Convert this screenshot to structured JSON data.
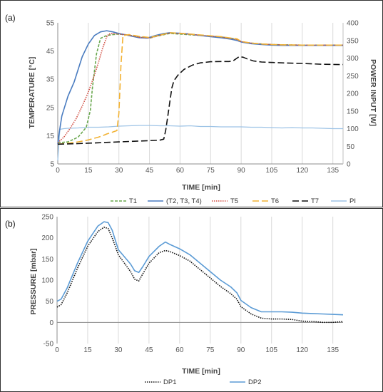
{
  "chart_data": [
    {
      "panel_label": "(a)",
      "type": "line",
      "xlabel": "TIME [min]",
      "ylabel": "TEMPERATURE [°C]",
      "y2label": "POWER INPUT [W]",
      "xlim": [
        0,
        140
      ],
      "ylim": [
        5,
        55
      ],
      "y2lim": [
        0,
        400
      ],
      "xticks": [
        "0",
        "15",
        "30",
        "45",
        "60",
        "75",
        "90",
        "105",
        "120",
        "135"
      ],
      "yticks": [
        "5",
        "15",
        "25",
        "35",
        "45",
        "55"
      ],
      "y2ticks": [
        "0",
        "50",
        "100",
        "150",
        "200",
        "250",
        "300",
        "350",
        "400"
      ],
      "grid": "vertical",
      "legend_position": "bottom",
      "series": [
        {
          "name": "T1",
          "axis": "left",
          "color": "#6aa84f",
          "dash": "dash",
          "x": [
            0,
            5,
            10,
            14,
            16,
            17,
            19,
            21,
            24,
            27,
            30,
            33,
            36,
            40,
            45,
            50,
            55,
            60,
            70,
            80,
            88,
            90,
            95,
            100,
            105,
            110,
            120,
            130,
            140
          ],
          "y": [
            12.5,
            12.8,
            14.5,
            18,
            24,
            32,
            44,
            49.5,
            50.5,
            50.8,
            51,
            50.8,
            50.5,
            50,
            49.6,
            50.5,
            51.2,
            51,
            50.5,
            50,
            49.2,
            48.3,
            47.8,
            47.5,
            47.3,
            47.2,
            47.1,
            47.1,
            47.1
          ]
        },
        {
          "name": "(T2, T3, T4)",
          "axis": "left",
          "color": "#4a7cc0",
          "dash": "solid",
          "x": [
            0,
            0.5,
            2,
            5,
            8,
            12,
            15,
            18,
            21,
            24,
            27,
            30,
            33,
            36,
            40,
            44,
            48,
            52,
            55,
            60,
            65,
            70,
            75,
            80,
            85,
            88,
            90,
            95,
            100,
            105,
            110,
            120,
            130,
            140
          ],
          "y": [
            12,
            15,
            22,
            29,
            34,
            43,
            47.5,
            50.5,
            51.8,
            52.2,
            51.8,
            51.2,
            50.8,
            50.3,
            49.7,
            49.6,
            50.5,
            51.2,
            51.5,
            51.3,
            51,
            50.5,
            50.1,
            49.7,
            49.2,
            48.7,
            48.2,
            47.6,
            47.3,
            47.1,
            47,
            47,
            47,
            47
          ]
        },
        {
          "name": "T5",
          "axis": "left",
          "color": "#d04a3e",
          "dash": "dot",
          "x": [
            0,
            3,
            6,
            9,
            12,
            15,
            18,
            20,
            22,
            24,
            25,
            27,
            30,
            35,
            40,
            45,
            50,
            55,
            60,
            70,
            80,
            88,
            90,
            95,
            100,
            105,
            110,
            120,
            130,
            140
          ],
          "y": [
            12.5,
            14.5,
            17.5,
            21,
            25.5,
            30.5,
            36.5,
            41,
            46,
            50,
            51,
            51.2,
            51,
            50.6,
            49.9,
            49.6,
            50.6,
            51.4,
            51.2,
            50.6,
            50,
            49.1,
            48.3,
            47.8,
            47.5,
            47.3,
            47.2,
            47.1,
            47.1,
            47.1
          ]
        },
        {
          "name": "T6",
          "axis": "left",
          "color": "#f2b233",
          "dash": "longdash",
          "x": [
            0,
            5,
            10,
            15,
            20,
            22,
            24,
            27,
            29,
            30,
            31,
            32,
            35,
            40,
            45,
            50,
            55,
            60,
            70,
            80,
            88,
            90,
            95,
            100,
            105,
            110,
            120,
            130,
            140
          ],
          "y": [
            12,
            12.3,
            12.8,
            13.5,
            14.5,
            15,
            15.6,
            16.3,
            16.8,
            23,
            40,
            50.5,
            50.8,
            50.2,
            49.8,
            50.6,
            51.5,
            51.3,
            50.7,
            50.1,
            49.3,
            48.4,
            47.8,
            47.5,
            47.3,
            47.2,
            47.1,
            47.1,
            47.1
          ]
        },
        {
          "name": "T7",
          "axis": "left",
          "color": "#111111",
          "dash": "longdash",
          "x": [
            0,
            10,
            20,
            30,
            40,
            50,
            52,
            53,
            54,
            55,
            56,
            57,
            59,
            62,
            66,
            70,
            75,
            80,
            84,
            86,
            88,
            89,
            91,
            93,
            96,
            100,
            110,
            120,
            130,
            140
          ],
          "y": [
            12,
            12.2,
            12.5,
            12.8,
            13.1,
            13.4,
            13.8,
            17,
            22,
            27,
            32,
            34.5,
            36.5,
            38.5,
            40,
            40.8,
            41.2,
            41.3,
            41.3,
            41.5,
            42.5,
            43,
            42.8,
            42.2,
            41.5,
            41.1,
            40.8,
            40.6,
            40.3,
            40.2
          ]
        },
        {
          "name": "PI",
          "axis": "right",
          "color": "#9dc3e6",
          "dash": "solid",
          "x": [
            0,
            1,
            3,
            5,
            10,
            15,
            20,
            25,
            30,
            35,
            40,
            45,
            50,
            55,
            60,
            65,
            70,
            75,
            80,
            85,
            90,
            95,
            100,
            105,
            110,
            115,
            120,
            125,
            130,
            135,
            140
          ],
          "y": [
            10,
            98,
            100,
            101,
            102,
            104,
            104,
            105,
            107,
            108,
            109,
            109,
            108,
            108,
            107,
            108,
            106,
            106,
            105,
            105,
            105,
            104,
            104,
            103,
            102,
            103,
            102,
            102,
            101,
            100,
            100
          ]
        }
      ]
    },
    {
      "panel_label": "(b)",
      "type": "line",
      "xlabel": "TIME [min]",
      "ylabel": "PRESSURE [mbar]",
      "xlim": [
        0,
        140
      ],
      "ylim": [
        -50,
        250
      ],
      "xticks": [
        "0",
        "15",
        "30",
        "45",
        "60",
        "75",
        "90",
        "105",
        "120",
        "135"
      ],
      "yticks": [
        "-50",
        "0",
        "50",
        "100",
        "150",
        "200",
        "250"
      ],
      "grid": "vertical",
      "legend_position": "bottom",
      "series": [
        {
          "name": "DP1",
          "color": "#111111",
          "dash": "dot",
          "x": [
            0,
            2,
            5,
            10,
            15,
            20,
            23,
            25,
            27,
            30,
            33,
            36,
            38,
            40,
            42,
            45,
            50,
            53,
            55,
            60,
            65,
            70,
            75,
            80,
            85,
            88,
            90,
            95,
            100,
            105,
            110,
            115,
            120,
            125,
            130,
            135,
            140
          ],
          "y": [
            36,
            42,
            70,
            128,
            180,
            215,
            225,
            222,
            200,
            160,
            140,
            120,
            102,
            98,
            115,
            140,
            165,
            170,
            168,
            158,
            145,
            125,
            105,
            85,
            68,
            55,
            37,
            20,
            10,
            8,
            8,
            7,
            3,
            2,
            0,
            0,
            2
          ]
        },
        {
          "name": "DP2",
          "color": "#5b9bd5",
          "dash": "solid",
          "x": [
            0,
            2,
            5,
            10,
            15,
            20,
            23,
            25,
            27,
            30,
            33,
            36,
            38,
            40,
            42,
            45,
            50,
            53,
            55,
            60,
            65,
            70,
            75,
            80,
            85,
            88,
            90,
            95,
            100,
            105,
            110,
            115,
            120,
            125,
            130,
            135,
            140
          ],
          "y": [
            50,
            55,
            82,
            140,
            192,
            228,
            238,
            236,
            218,
            172,
            155,
            138,
            122,
            118,
            132,
            156,
            180,
            190,
            185,
            174,
            160,
            140,
            120,
            100,
            84,
            70,
            52,
            35,
            25,
            25,
            25,
            24,
            22,
            21,
            20,
            19,
            18
          ]
        }
      ]
    }
  ]
}
